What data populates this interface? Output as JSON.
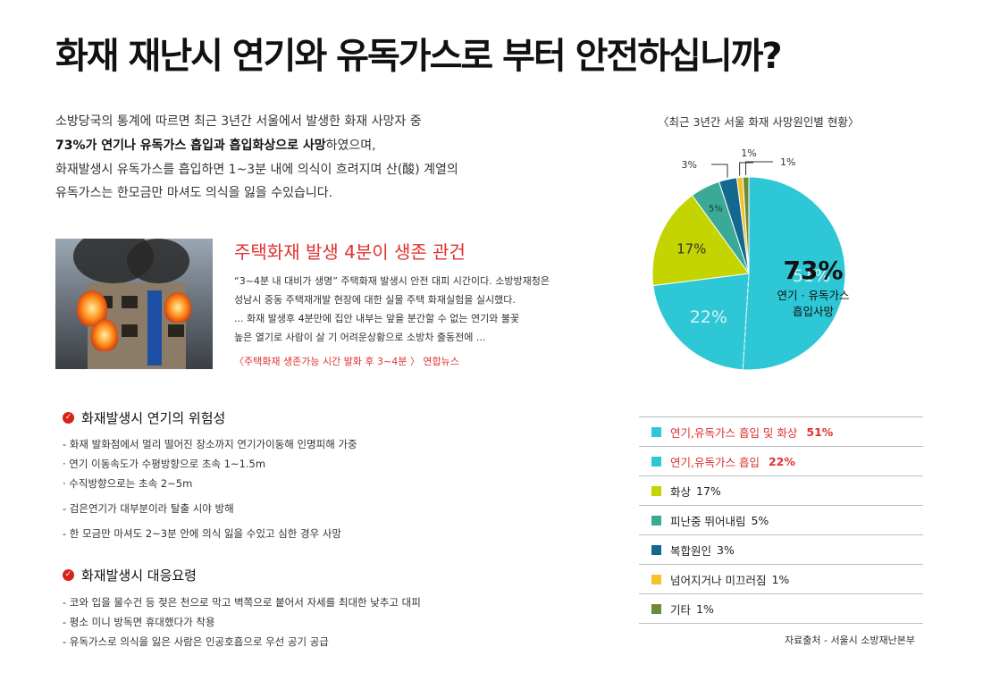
{
  "headline": "화재 재난시 연기와 유독가스로 부터 안전하십니까?",
  "intro": {
    "line1": "소방당국의 통계에 따르면 최근 3년간 서울에서 발생한 화재 사망자 중",
    "line2_bold": "73%가 연기나 유독가스 흡입과 흡입화상으로 사망",
    "line2_rest": "하였으며,",
    "line3": "화재발생시 유독가스를 흡입하면 1~3분 내에 의식이 흐려지며  산(酸) 계열의",
    "line4": "유독가스는 한모금만 마셔도 의식을 잃을 수있습니다."
  },
  "news": {
    "title": "주택화재 발생 4분이 생존 관건",
    "lines": [
      "“3~4분 내 대비가 생명”  주택화재 발생시 안전 대피 시간이다. 소방방재청은",
      "성남시 중동 주택재개발 현장에 대한 실물 주택 화재실험을 실시했다.",
      "... 화재 발생후 4분만에 집안 내부는 앞을 분간할 수 없는 연기와 불꽃",
      "높은 열기로 사람이 살 기 어려운상황으로 소방차 출동전에 ..."
    ],
    "caption": "〈주택화재 생존가능 시간 발화 후 3~4분 〉  연합뉴스"
  },
  "section1": {
    "title": "화재발생시 연기의 위험성",
    "icon": "check-icon",
    "items": [
      "- 화재 발화점에서 멀리 떨어진 장소까지 연기가이동해 인명피해 가중",
      " · 연기 이동속도가 수평방향으로 초속 1~1.5m",
      " · 수직방향으로는 초속 2~5m",
      "- 검은연기가 대부분이라 탈출 시야 방해",
      "- 한 모금만 마셔도 2~3분 안에 의식 잃을 수있고 심한 경우 사망"
    ]
  },
  "section2": {
    "title": "화재발생시 대응요령",
    "icon": "check-icon",
    "items": [
      "- 코와 입을 물수건 등 젖은 천으로 막고 벽쪽으로 붙어서 자세를 최대한 낮추고 대피",
      "- 평소 미니 방독면 휴대했다가 착용",
      "- 유독가스로 의식을 잃은 사람은 인공호흡으로 우선 공기 공급"
    ]
  },
  "chart_data": {
    "type": "pie",
    "title": "〈최근 3년간 서울 화재 사망원인별 현황〉",
    "slices": [
      {
        "label": "연기,유독가스 흡입 및 화상",
        "value": 51,
        "value_label": "51%",
        "color": "#2ec7d6",
        "highlight": true
      },
      {
        "label": "연기,유독가스 흡입",
        "value": 22,
        "value_label": "22%",
        "color": "#2ec7d6",
        "highlight": true
      },
      {
        "label": "화상",
        "value": 17,
        "value_label": "17%",
        "color": "#c3d400",
        "highlight": false
      },
      {
        "label": "피난중 뛰어내림",
        "value": 5,
        "value_label": "5%",
        "color": "#3aaa96",
        "highlight": false
      },
      {
        "label": "복합원인",
        "value": 3,
        "value_label": "3%",
        "color": "#14688d",
        "highlight": false
      },
      {
        "label": "넘어지거나 미끄러짐",
        "value": 1,
        "value_label": "1%",
        "color": "#f4c22b",
        "highlight": false
      },
      {
        "label": "기타",
        "value": 1,
        "value_label": "1%",
        "color": "#6b8a3a",
        "highlight": false
      }
    ],
    "combined": {
      "value_label": "73%",
      "label_lines": [
        "연기 · 유독가스",
        "흡입사망"
      ]
    }
  },
  "source": "자료출처 - 서울시 소방재난본부"
}
